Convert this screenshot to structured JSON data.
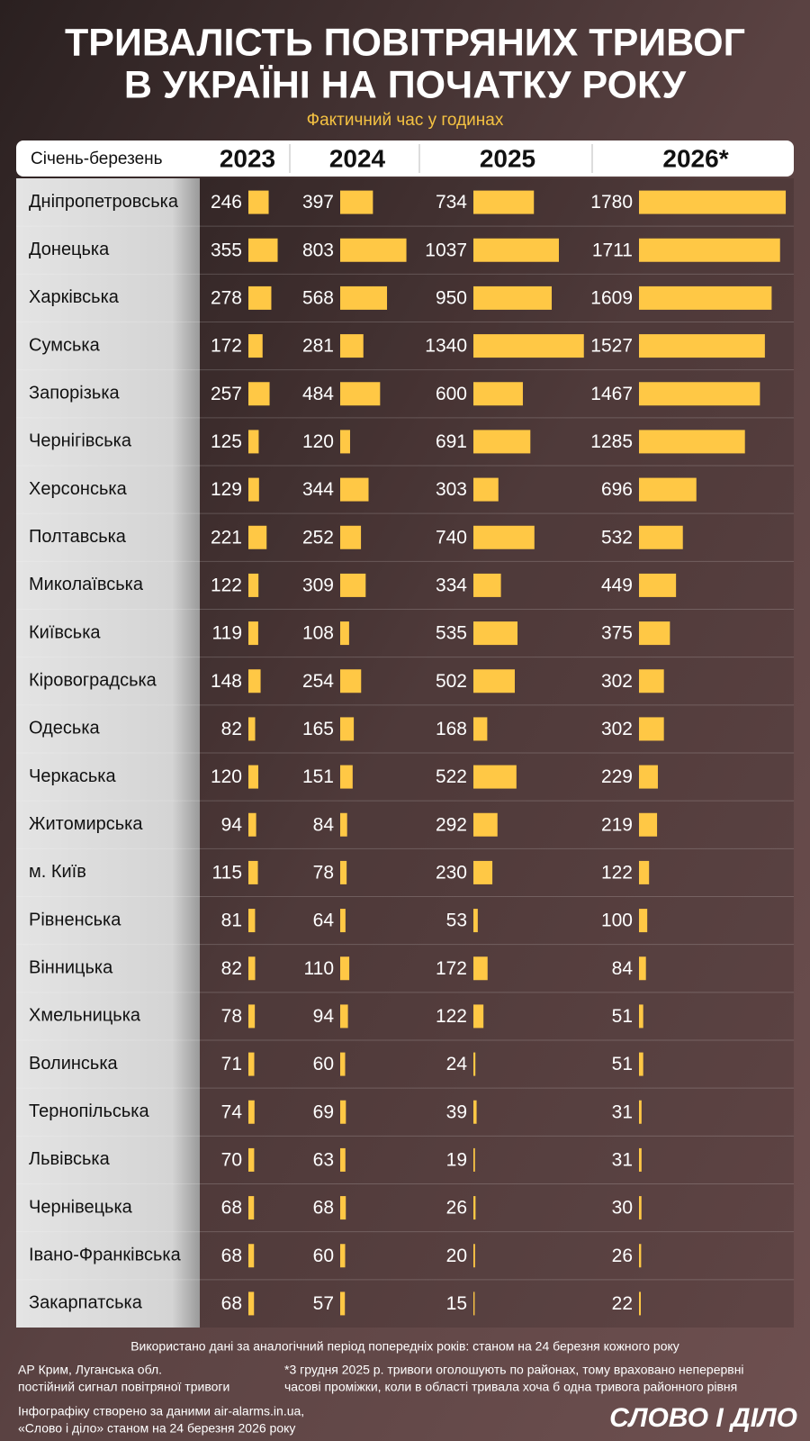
{
  "chart_data": {
    "type": "bar",
    "title": [
      "ТРИВАЛІСТЬ ПОВІТРЯНИХ ТРИВОГ",
      "В УКРАЇНІ НА ПОЧАТКУ РОКУ"
    ],
    "subtitle": "Фактичний час у годинах",
    "period_label": "Січень-березень",
    "categories": [
      "Дніпропетровська",
      "Донецька",
      "Харківська",
      "Сумська",
      "Запорізька",
      "Чернігівська",
      "Херсонська",
      "Полтавська",
      "Миколаївська",
      "Київська",
      "Кіровоградська",
      "Одеська",
      "Черкаська",
      "Житомирська",
      "м. Київ",
      "Рівненська",
      "Вінницька",
      "Хмельницька",
      "Волинська",
      "Тернопільська",
      "Львівська",
      "Чернівецька",
      "Івано-Франківська",
      "Закарпатська"
    ],
    "series": [
      {
        "name": "2023",
        "color": "#ffc845",
        "values": [
          246,
          355,
          278,
          172,
          257,
          125,
          129,
          221,
          122,
          119,
          148,
          82,
          120,
          94,
          115,
          81,
          82,
          78,
          71,
          74,
          70,
          68,
          68,
          68
        ]
      },
      {
        "name": "2024",
        "color": "#ffc845",
        "values": [
          397,
          803,
          568,
          281,
          484,
          120,
          344,
          252,
          309,
          108,
          254,
          165,
          151,
          84,
          78,
          64,
          110,
          94,
          60,
          69,
          63,
          68,
          60,
          57
        ]
      },
      {
        "name": "2025",
        "color": "#ffc845",
        "values": [
          734,
          1037,
          950,
          1340,
          600,
          691,
          303,
          740,
          334,
          535,
          502,
          168,
          522,
          292,
          230,
          53,
          172,
          122,
          24,
          39,
          19,
          26,
          20,
          15
        ]
      },
      {
        "name": "2026*",
        "color": "#ffc845",
        "values": [
          1780,
          1711,
          1609,
          1527,
          1467,
          1285,
          696,
          532,
          449,
          375,
          302,
          302,
          229,
          219,
          122,
          100,
          84,
          51,
          51,
          31,
          31,
          30,
          26,
          22
        ]
      }
    ],
    "notes": {
      "period": "Використано дані за аналогічний період попередніх років: станом на 24 березня кожного року",
      "crimea": [
        "АР Крим, Луганська обл.",
        "постійний сигнал повітряної тривоги"
      ],
      "districts": [
        "*3 грудня 2025 р. тривоги оголошують по районах, тому враховано неперервні",
        "часові проміжки, коли в області тривала хоча б одна тривога районного рівня"
      ],
      "source": [
        "Інфографіку створено за даними air-alarms.in.ua,",
        "«Слово і діло» станом на 24 березня 2026 року"
      ]
    },
    "logo": "СЛОВО І ДІЛО"
  }
}
